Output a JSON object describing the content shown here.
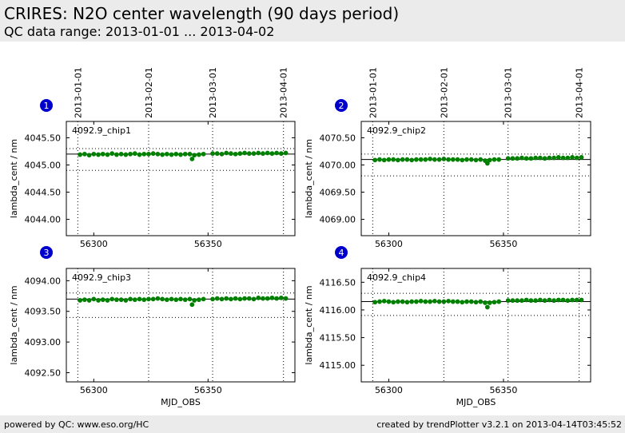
{
  "header": {
    "title": "CRIRES: N2O center wavelength (90 days period)",
    "subtitle": "QC data range: 2013-01-01 ... 2013-04-02"
  },
  "footer": {
    "left": "powered by QC: www.eso.org/HC",
    "right": "created by trendPlotter v3.2.1 on 2013-04-14T03:45:52"
  },
  "colors": {
    "marker": "#008000",
    "badge": "#0000cc",
    "header_bg": "#ebebeb"
  },
  "date_ticks": [
    {
      "label": "2013-01-01",
      "mjd": 56293
    },
    {
      "label": "2013-02-01",
      "mjd": 56324
    },
    {
      "label": "2013-03-01",
      "mjd": 56352
    },
    {
      "label": "2013-04-01",
      "mjd": 56383
    }
  ],
  "chart_data": [
    {
      "type": "scatter",
      "badge": "1",
      "label": "4092.9_chip1",
      "xlabel": "",
      "ylabel": "lambda_cent / nm",
      "xlim": [
        56288,
        56388
      ],
      "ylim": [
        4043.7,
        4045.8
      ],
      "x_ticks": [],
      "y_ticks": [
        "4044.00",
        "4044.50",
        "4045.00",
        "4045.50"
      ],
      "y_tick_values": [
        4044.0,
        4044.5,
        4045.0,
        4045.5
      ],
      "ref_line": 4045.2,
      "tol_lines": [
        4045.3,
        4044.9
      ],
      "points": {
        "x": [
          56294,
          56296,
          56298,
          56300,
          56302,
          56304,
          56306,
          56308,
          56310,
          56312,
          56314,
          56316,
          56318,
          56320,
          56322,
          56324,
          56326,
          56328,
          56330,
          56332,
          56334,
          56336,
          56338,
          56340,
          56342,
          56343,
          56344,
          56346,
          56348,
          56352,
          56354,
          56356,
          56358,
          56360,
          56362,
          56364,
          56366,
          56368,
          56370,
          56372,
          56374,
          56376,
          56378,
          56380,
          56382,
          56384
        ],
        "y": [
          4045.19,
          4045.2,
          4045.18,
          4045.2,
          4045.19,
          4045.2,
          4045.19,
          4045.21,
          4045.19,
          4045.2,
          4045.19,
          4045.2,
          4045.21,
          4045.19,
          4045.2,
          4045.2,
          4045.21,
          4045.2,
          4045.19,
          4045.2,
          4045.19,
          4045.2,
          4045.19,
          4045.2,
          4045.2,
          4045.11,
          4045.18,
          4045.19,
          4045.2,
          4045.21,
          4045.21,
          4045.2,
          4045.22,
          4045.21,
          4045.2,
          4045.21,
          4045.22,
          4045.21,
          4045.21,
          4045.22,
          4045.21,
          4045.22,
          4045.21,
          4045.22,
          4045.21,
          4045.22
        ]
      }
    },
    {
      "type": "scatter",
      "badge": "2",
      "label": "4092.9_chip2",
      "xlabel": "",
      "ylabel": "lambda_cent / nm",
      "xlim": [
        56288,
        56388
      ],
      "ylim": [
        4068.7,
        4070.8
      ],
      "x_ticks": [],
      "y_ticks": [
        "4069.00",
        "4069.50",
        "4070.00",
        "4070.50"
      ],
      "y_tick_values": [
        4069.0,
        4069.5,
        4070.0,
        4070.5
      ],
      "ref_line": 4070.1,
      "tol_lines": [
        4070.2,
        4069.8
      ],
      "points": {
        "x": [
          56294,
          56296,
          56298,
          56300,
          56302,
          56304,
          56306,
          56308,
          56310,
          56312,
          56314,
          56316,
          56318,
          56320,
          56322,
          56324,
          56326,
          56328,
          56330,
          56332,
          56334,
          56336,
          56338,
          56340,
          56342,
          56343,
          56344,
          56346,
          56348,
          56352,
          56354,
          56356,
          56358,
          56360,
          56362,
          56364,
          56366,
          56368,
          56370,
          56372,
          56374,
          56376,
          56378,
          56380,
          56382,
          56384
        ],
        "y": [
          4070.09,
          4070.1,
          4070.09,
          4070.1,
          4070.1,
          4070.09,
          4070.1,
          4070.1,
          4070.09,
          4070.1,
          4070.1,
          4070.1,
          4070.11,
          4070.1,
          4070.1,
          4070.11,
          4070.1,
          4070.1,
          4070.1,
          4070.09,
          4070.1,
          4070.1,
          4070.09,
          4070.1,
          4070.08,
          4070.03,
          4070.09,
          4070.1,
          4070.1,
          4070.12,
          4070.12,
          4070.12,
          4070.13,
          4070.12,
          4070.12,
          4070.13,
          4070.13,
          4070.12,
          4070.13,
          4070.13,
          4070.14,
          4070.13,
          4070.13,
          4070.14,
          4070.13,
          4070.14
        ]
      }
    },
    {
      "type": "scatter",
      "badge": "3",
      "label": "4092.9_chip3",
      "xlabel": "MJD_OBS",
      "ylabel": "lambda_cent / nm",
      "xlim": [
        56288,
        56388
      ],
      "ylim": [
        4092.35,
        4094.2
      ],
      "x_ticks": [
        "56300",
        "56350"
      ],
      "x_tick_values": [
        56300,
        56350
      ],
      "y_ticks": [
        "4092.50",
        "4093.00",
        "4093.50",
        "4094.00"
      ],
      "y_tick_values": [
        4092.5,
        4093.0,
        4093.5,
        4094.0
      ],
      "ref_line": 4093.7,
      "tol_lines": [
        4093.8,
        4093.4
      ],
      "points": {
        "x": [
          56294,
          56296,
          56298,
          56300,
          56302,
          56304,
          56306,
          56308,
          56310,
          56312,
          56314,
          56316,
          56318,
          56320,
          56322,
          56324,
          56326,
          56328,
          56330,
          56332,
          56334,
          56336,
          56338,
          56340,
          56342,
          56343,
          56344,
          56346,
          56348,
          56352,
          56354,
          56356,
          56358,
          56360,
          56362,
          56364,
          56366,
          56368,
          56370,
          56372,
          56374,
          56376,
          56378,
          56380,
          56382,
          56384
        ],
        "y": [
          4093.68,
          4093.69,
          4093.68,
          4093.7,
          4093.68,
          4093.69,
          4093.68,
          4093.7,
          4093.69,
          4093.69,
          4093.68,
          4093.7,
          4093.69,
          4093.7,
          4093.69,
          4093.7,
          4093.7,
          4093.71,
          4093.7,
          4093.69,
          4093.7,
          4093.69,
          4093.7,
          4093.69,
          4093.7,
          4093.61,
          4093.68,
          4093.69,
          4093.7,
          4093.7,
          4093.71,
          4093.7,
          4093.71,
          4093.7,
          4093.71,
          4093.7,
          4093.71,
          4093.71,
          4093.7,
          4093.72,
          4093.71,
          4093.71,
          4093.72,
          4093.71,
          4093.72,
          4093.71
        ]
      }
    },
    {
      "type": "scatter",
      "badge": "4",
      "label": "4092.9_chip4",
      "xlabel": "MJD_OBS",
      "ylabel": "lambda_cent / nm",
      "xlim": [
        56288,
        56388
      ],
      "ylim": [
        4114.7,
        4116.75
      ],
      "x_ticks": [
        "56300",
        "56350"
      ],
      "x_tick_values": [
        56300,
        56350
      ],
      "y_ticks": [
        "4115.00",
        "4115.50",
        "4116.00",
        "4116.50"
      ],
      "y_tick_values": [
        4115.0,
        4115.5,
        4116.0,
        4116.5
      ],
      "ref_line": 4116.15,
      "tol_lines": [
        4116.3,
        4115.9
      ],
      "points": {
        "x": [
          56294,
          56296,
          56298,
          56300,
          56302,
          56304,
          56306,
          56308,
          56310,
          56312,
          56314,
          56316,
          56318,
          56320,
          56322,
          56324,
          56326,
          56328,
          56330,
          56332,
          56334,
          56336,
          56338,
          56340,
          56342,
          56343,
          56344,
          56346,
          56348,
          56352,
          56354,
          56356,
          56358,
          56360,
          56362,
          56364,
          56366,
          56368,
          56370,
          56372,
          56374,
          56376,
          56378,
          56380,
          56382,
          56384
        ],
        "y": [
          4116.14,
          4116.15,
          4116.16,
          4116.15,
          4116.14,
          4116.15,
          4116.15,
          4116.14,
          4116.15,
          4116.15,
          4116.16,
          4116.15,
          4116.15,
          4116.16,
          4116.15,
          4116.15,
          4116.16,
          4116.15,
          4116.15,
          4116.14,
          4116.15,
          4116.15,
          4116.14,
          4116.15,
          4116.13,
          4116.05,
          4116.13,
          4116.14,
          4116.15,
          4116.17,
          4116.17,
          4116.17,
          4116.17,
          4116.18,
          4116.17,
          4116.17,
          4116.18,
          4116.17,
          4116.18,
          4116.17,
          4116.18,
          4116.18,
          4116.17,
          4116.18,
          4116.18,
          4116.18
        ]
      }
    }
  ]
}
